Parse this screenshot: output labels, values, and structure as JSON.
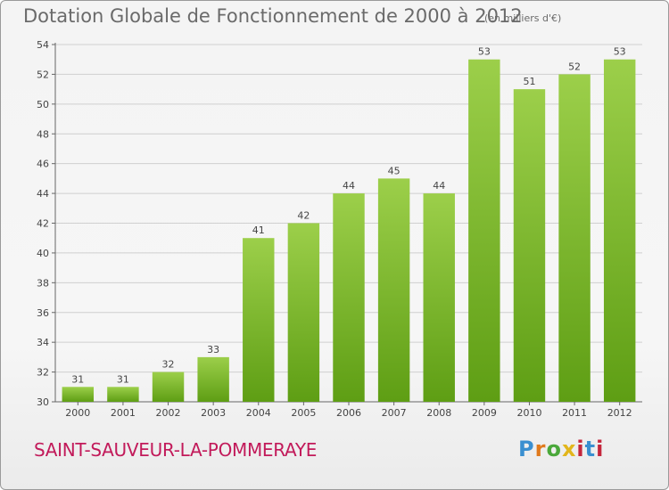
{
  "header": {
    "title": "Dotation Globale de Fonctionnement de 2000 à 2012",
    "units": "(en milliers d'€)"
  },
  "footer": {
    "city": "SAINT-SAUVEUR-LA-POMMERAYE",
    "logo": "Proxiti"
  },
  "colors": {
    "bar_top": "#9ccf4a",
    "bar_bottom": "#5e9e14",
    "city": "#c21a5a",
    "grid": "#cfcfcf"
  },
  "chart_data": {
    "type": "bar",
    "title": "Dotation Globale de Fonctionnement de 2000 à 2012",
    "subtitle": "(en milliers d'€)",
    "categories": [
      "2000",
      "2001",
      "2002",
      "2003",
      "2004",
      "2005",
      "2006",
      "2007",
      "2008",
      "2009",
      "2010",
      "2011",
      "2012"
    ],
    "values": [
      31,
      31,
      32,
      33,
      41,
      42,
      44,
      45,
      44,
      53,
      51,
      52,
      53
    ],
    "ylim": [
      30,
      54
    ],
    "yticks": [
      30,
      32,
      34,
      36,
      38,
      40,
      42,
      44,
      46,
      48,
      50,
      52,
      54
    ],
    "grid": true,
    "data_labels": true
  }
}
